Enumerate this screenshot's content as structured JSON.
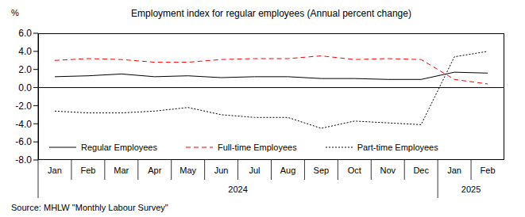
{
  "chart_data": {
    "type": "line",
    "title": "Employment index for regular employees (Annual percent change)",
    "y_unit": "%",
    "source": "Source: MHLW \"Monthly Labour Survey\"",
    "categories": [
      "Jan",
      "Feb",
      "Mar",
      "Apr",
      "May",
      "Jun",
      "Jul",
      "Aug",
      "Sep",
      "Oct",
      "Nov",
      "Dec",
      "Jan",
      "Feb"
    ],
    "year_labels": [
      "2024",
      "2024",
      "2024",
      "2024",
      "2024",
      "2024",
      "2024",
      "2024",
      "2024",
      "2024",
      "2024",
      "2024",
      "2025",
      "2025"
    ],
    "series": [
      {
        "name": "Regular Employees",
        "color": "#000000",
        "line_style": "solid",
        "values": [
          1.2,
          1.3,
          1.5,
          1.2,
          1.3,
          1.1,
          1.2,
          1.2,
          1.0,
          1.0,
          0.9,
          0.9,
          1.7,
          1.6
        ]
      },
      {
        "name": "Full-time Employees",
        "color": "#ff0000",
        "line_style": "dashed",
        "values": [
          3.0,
          3.2,
          3.1,
          2.8,
          2.8,
          3.1,
          3.2,
          3.2,
          3.5,
          3.1,
          3.2,
          3.1,
          0.9,
          0.4
        ]
      },
      {
        "name": "Part-time Employees",
        "color": "#000000",
        "line_style": "dotted",
        "values": [
          -2.6,
          -2.8,
          -2.8,
          -2.6,
          -2.2,
          -3.0,
          -3.3,
          -3.3,
          -4.5,
          -3.7,
          -3.9,
          -4.1,
          3.4,
          4.0
        ]
      }
    ],
    "ylim": [
      -8,
      6
    ],
    "yticks": [
      {
        "value": -8,
        "label": "-8.0"
      },
      {
        "value": -6,
        "label": "-6.0"
      },
      {
        "value": -4,
        "label": "-4.0"
      },
      {
        "value": -2,
        "label": "-2.0"
      },
      {
        "value": 0,
        "label": "0.0"
      },
      {
        "value": 2,
        "label": "2.0"
      },
      {
        "value": 4,
        "label": "4.0"
      },
      {
        "value": 6,
        "label": "6.0"
      }
    ],
    "grid": false,
    "legend": "lower left"
  }
}
